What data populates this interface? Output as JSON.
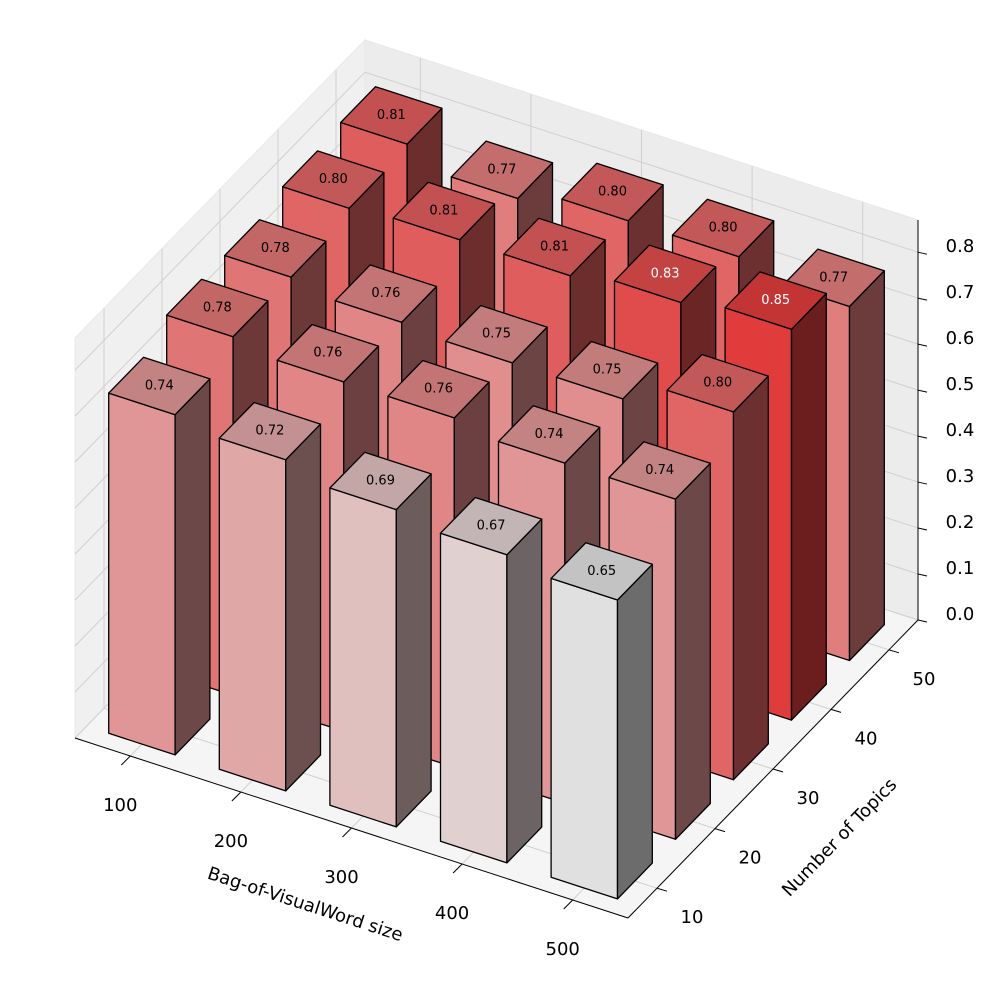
{
  "chart_data": {
    "type": "bar3d",
    "x_label": "Bag-of-VisualWord size",
    "y_label": "Number of Topics",
    "x": [
      100,
      200,
      300,
      400,
      500
    ],
    "y": [
      10,
      20,
      30,
      40,
      50
    ],
    "values": [
      [
        0.74,
        0.72,
        0.69,
        0.67,
        0.65
      ],
      [
        0.78,
        0.76,
        0.76,
        0.74,
        0.74
      ],
      [
        0.78,
        0.76,
        0.75,
        0.75,
        0.8
      ],
      [
        0.8,
        0.81,
        0.81,
        0.83,
        0.85
      ],
      [
        0.81,
        0.77,
        0.8,
        0.8,
        0.77
      ]
    ],
    "value_labels": [
      [
        "0.74",
        "0.72",
        "0.69",
        "0.67",
        "0.65"
      ],
      [
        "0.78",
        "0.76",
        "0.76",
        "0.74",
        "0.74"
      ],
      [
        "0.78",
        "0.76",
        "0.75",
        "0.75",
        "0.80"
      ],
      [
        "0.80",
        "0.81",
        "0.81",
        "0.83",
        "0.85"
      ],
      [
        "0.81",
        "0.77",
        "0.80",
        "0.80",
        "0.77"
      ]
    ],
    "xlim": [
      50,
      550
    ],
    "ylim": [
      5,
      55
    ],
    "zlim": [
      0,
      0.87
    ],
    "zticks": [
      {
        "value": 0,
        "label": "0.0"
      },
      {
        "value": 0.1,
        "label": "0.1"
      },
      {
        "value": 0.2,
        "label": "0.2"
      },
      {
        "value": 0.3,
        "label": "0.3"
      },
      {
        "value": 0.4,
        "label": "0.4"
      },
      {
        "value": 0.5,
        "label": "0.5"
      },
      {
        "value": 0.6,
        "label": "0.6"
      },
      {
        "value": 0.7,
        "label": "0.7"
      },
      {
        "value": 0.8,
        "label": "0.8"
      }
    ],
    "colormap": [
      "#e0e0e0",
      "#e03c3c"
    ],
    "grid": true
  }
}
